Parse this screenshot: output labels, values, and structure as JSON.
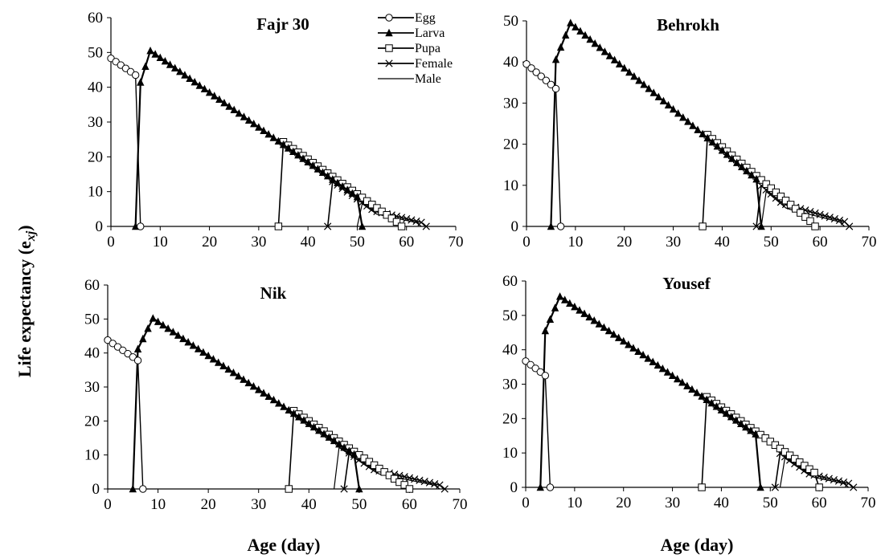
{
  "y_axis_label": "Life expectancy (e",
  "y_axis_label_sub": "xj",
  "y_axis_label_end": ")",
  "legend": [
    {
      "name": "Egg",
      "marker": "circle"
    },
    {
      "name": "Larva",
      "marker": "triangle"
    },
    {
      "name": "Pupa",
      "marker": "square"
    },
    {
      "name": "Female",
      "marker": "x"
    },
    {
      "name": "Male",
      "marker": "none"
    }
  ],
  "chart_data": [
    {
      "type": "line",
      "title": "Fajr 30",
      "xlabel": "",
      "ylabel": "",
      "xlim": [
        0,
        70
      ],
      "ylim": [
        0,
        60
      ],
      "xticks": [
        "0",
        "10",
        "20",
        "30",
        "40",
        "50",
        "60",
        "70"
      ],
      "yticks": [
        "0",
        "10",
        "20",
        "30",
        "40",
        "50",
        "60"
      ],
      "stages": {
        "egg_end": 5,
        "larva_start": 6,
        "larva_peak": 8,
        "pupa_start": 34,
        "pupa_end": 59,
        "female_start": 44,
        "male_start": 50,
        "female_end": 64,
        "larva_end": 51,
        "egg_start_value": 48.3,
        "egg_end_value": 43.5,
        "larva_peak_value": 50.5
      }
    },
    {
      "type": "line",
      "title": "Behrokh",
      "xlabel": "",
      "ylabel": "",
      "xlim": [
        0,
        70
      ],
      "ylim": [
        0,
        50
      ],
      "xticks": [
        "0",
        "10",
        "20",
        "30",
        "40",
        "50",
        "60",
        "70"
      ],
      "yticks": [
        "0",
        "10",
        "20",
        "30",
        "40",
        "50"
      ],
      "stages": {
        "egg_end": 6,
        "larva_start": 6,
        "larva_peak": 9,
        "pupa_start": 36,
        "pupa_end": 59,
        "female_start": 47,
        "male_start": 48,
        "female_end": 66,
        "larva_end": 48,
        "egg_start_value": 39.5,
        "egg_end_value": 33.5,
        "larva_peak_value": 49.5
      }
    },
    {
      "type": "line",
      "title": "Nik",
      "xlabel": "Age (day)",
      "ylabel": "",
      "xlim": [
        0,
        70
      ],
      "ylim": [
        0,
        60
      ],
      "xticks": [
        "0",
        "10",
        "20",
        "30",
        "40",
        "50",
        "60",
        "70"
      ],
      "yticks": [
        "0",
        "10",
        "20",
        "30",
        "40",
        "50",
        "60"
      ],
      "stages": {
        "egg_end": 6,
        "larva_start": 6,
        "larva_peak": 9,
        "pupa_start": 36,
        "pupa_end": 60,
        "female_start": 47,
        "male_start": 45,
        "female_end": 67,
        "larva_end": 50,
        "egg_start_value": 43.8,
        "egg_end_value": 37.8,
        "larva_peak_value": 50.2
      }
    },
    {
      "type": "line",
      "title": "Yousef",
      "xlabel": "Age (day)",
      "ylabel": "",
      "xlim": [
        0,
        70
      ],
      "ylim": [
        0,
        60
      ],
      "xticks": [
        "0",
        "10",
        "20",
        "30",
        "40",
        "50",
        "60",
        "70"
      ],
      "yticks": [
        "0",
        "10",
        "20",
        "30",
        "40",
        "50",
        "60"
      ],
      "stages": {
        "egg_end": 4,
        "larva_start": 4,
        "larva_peak": 7,
        "pupa_start": 36,
        "pupa_end": 60,
        "female_start": 51,
        "male_start": 52,
        "female_end": 67,
        "larva_end": 48,
        "egg_start_value": 36.7,
        "egg_end_value": 32.5,
        "larva_peak_value": 55.5
      }
    }
  ]
}
